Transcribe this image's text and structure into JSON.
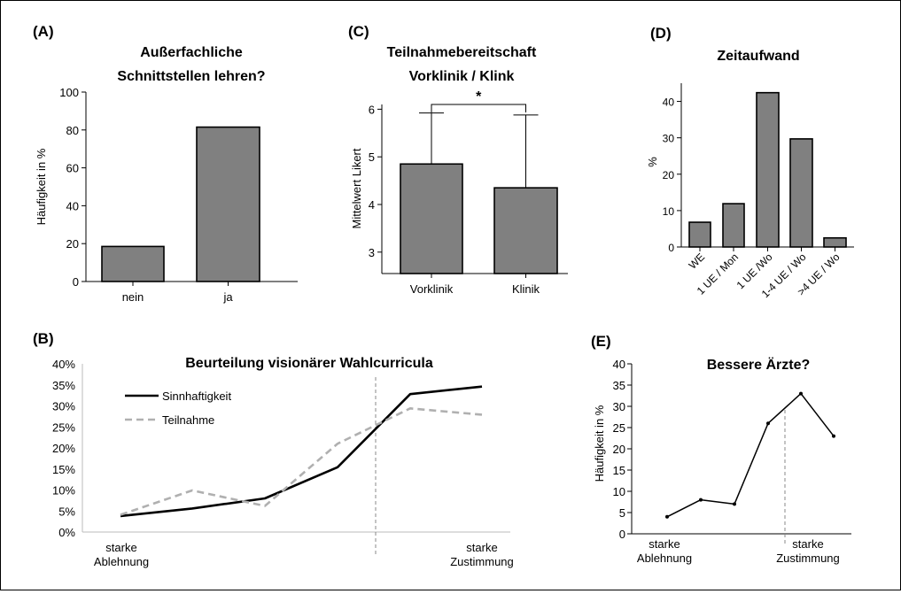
{
  "panels": {
    "A": {
      "label": "(A)"
    },
    "B": {
      "label": "(B)"
    },
    "C": {
      "label": "(C)"
    },
    "D": {
      "label": "(D)"
    },
    "E": {
      "label": "(E)"
    }
  },
  "chart_data": [
    {
      "id": "A",
      "type": "bar",
      "title": [
        "Außerfachliche",
        "Schnittstellen lehren?"
      ],
      "ylabel": "Häufigkeit in %",
      "categories": [
        "nein",
        "ja"
      ],
      "values": [
        18.5,
        81.5
      ],
      "ylim": [
        0,
        100
      ],
      "yticks": [
        0,
        20,
        40,
        60,
        80,
        100
      ],
      "color": "#808080"
    },
    {
      "id": "C",
      "type": "bar",
      "title": [
        "Teilnahmebereitschaft",
        "Vorklinik / Klink"
      ],
      "ylabel": "Mittelwert Likert",
      "categories": [
        "Vorklinik",
        "Klinik"
      ],
      "values": [
        4.85,
        4.35
      ],
      "error": [
        1.07,
        1.53
      ],
      "ylim": [
        2.55,
        6.1
      ],
      "yticks": [
        3,
        4,
        5,
        6
      ],
      "significance": "*",
      "color": "#808080"
    },
    {
      "id": "D",
      "type": "bar",
      "title": [
        "Zeitaufwand"
      ],
      "ylabel": "%",
      "categories": [
        "WE",
        "1 UE / Mon",
        "1 UE /Wo",
        "1-4 UE / Wo",
        ">4 UE / Wo"
      ],
      "values": [
        6.8,
        11.9,
        42.4,
        29.7,
        2.5
      ],
      "ylim": [
        0,
        45
      ],
      "yticks": [
        0,
        10,
        20,
        30,
        40
      ],
      "color": "#808080"
    },
    {
      "id": "B",
      "type": "line",
      "title": [
        "Beurteilung visionärer Wahlcurricula"
      ],
      "yticks": [
        "0%",
        "5%",
        "10%",
        "15%",
        "20%",
        "25%",
        "30%",
        "35%",
        "40%"
      ],
      "ylim": [
        0,
        40
      ],
      "x": [
        1,
        2,
        3,
        4,
        5,
        6
      ],
      "xlabels": {
        "start": [
          "starke",
          "Ablehnung"
        ],
        "end": [
          "starke",
          "Zustimmung"
        ]
      },
      "series": [
        {
          "name": "Sinnhaftigkeit",
          "values": [
            3.8,
            5.6,
            8.0,
            15.4,
            32.8,
            34.6
          ],
          "color": "#000000",
          "dash": ""
        },
        {
          "name": "Teilnahme",
          "values": [
            4.1,
            9.9,
            6.2,
            21.0,
            29.4,
            27.9
          ],
          "color": "#b0b0b0",
          "dash": "8,5"
        }
      ],
      "legend": "top-left"
    },
    {
      "id": "E",
      "type": "line",
      "title": [
        "Bessere Ärzte?"
      ],
      "ylabel": "Häufigkeit in %",
      "yticks": [
        0,
        5,
        10,
        15,
        20,
        25,
        30,
        35,
        40
      ],
      "ylim": [
        0,
        40
      ],
      "x": [
        1,
        2,
        3,
        4,
        5,
        6
      ],
      "xlabels": {
        "start": [
          "starke",
          "Ablehnung"
        ],
        "end": [
          "starke",
          "Zustimmung"
        ]
      },
      "series": [
        {
          "name": "",
          "values": [
            4,
            8,
            7,
            26,
            33,
            23
          ],
          "color": "#000000",
          "dash": ""
        }
      ]
    }
  ]
}
